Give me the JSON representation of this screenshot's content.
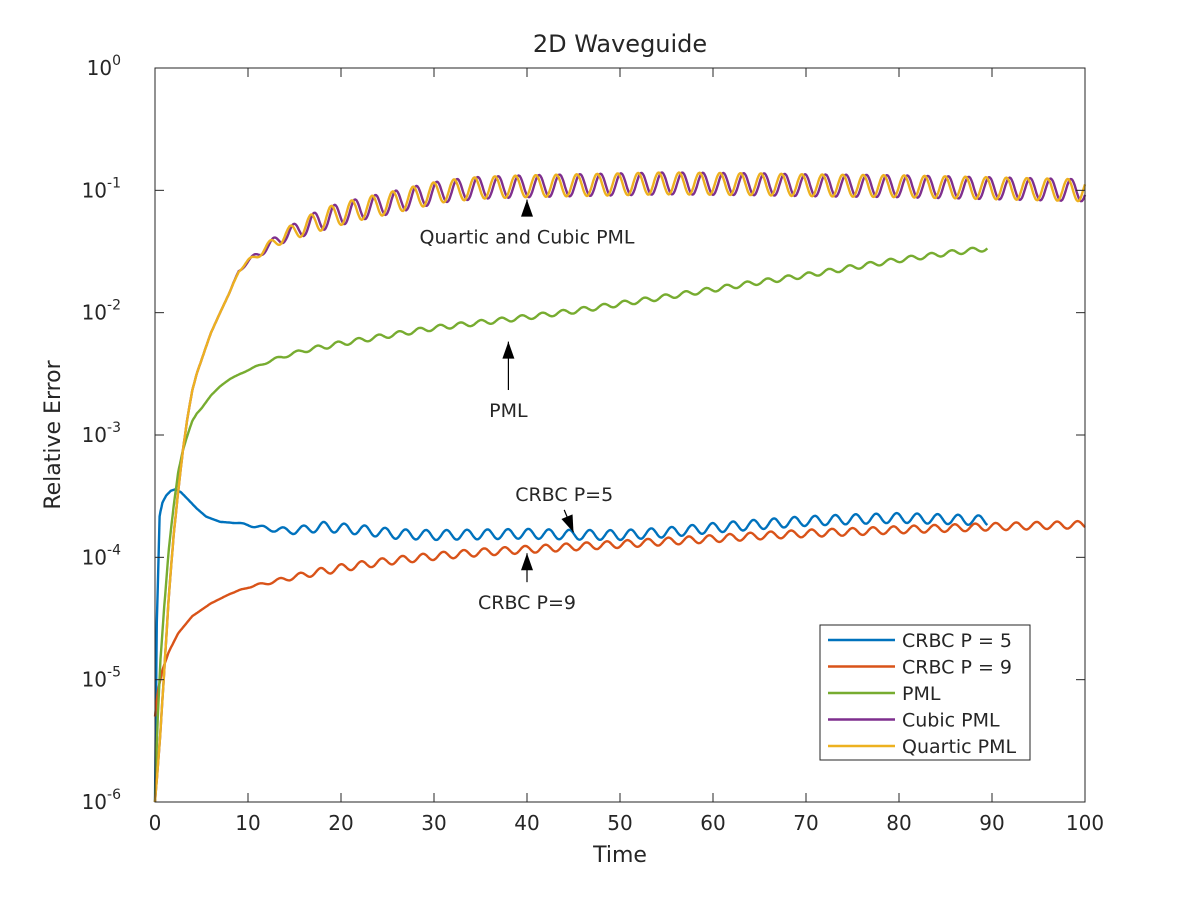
{
  "chart_data": {
    "type": "line",
    "title": "2D Waveguide",
    "xlabel": "Time",
    "ylabel": "Relative Error",
    "xlim": [
      0,
      100
    ],
    "ylim": [
      1e-06,
      1
    ],
    "yscale": "log",
    "grid": false,
    "legend_position": "bottom-right",
    "x_ticks": [
      "0",
      "10",
      "20",
      "30",
      "40",
      "50",
      "60",
      "70",
      "80",
      "90",
      "100"
    ],
    "y_ticks": [
      {
        "base": "10",
        "exp": "-6"
      },
      {
        "base": "10",
        "exp": "-5"
      },
      {
        "base": "10",
        "exp": "-4"
      },
      {
        "base": "10",
        "exp": "-3"
      },
      {
        "base": "10",
        "exp": "-2"
      },
      {
        "base": "10",
        "exp": "-1"
      },
      {
        "base": "10",
        "exp": "0"
      }
    ],
    "series": [
      {
        "name": "CRBC P = 5",
        "color": "#0072BD",
        "ripple": 0.04,
        "x": [
          0,
          0.2,
          0.5,
          0.8,
          1.2,
          1.7,
          2.2,
          2.8,
          3.5,
          4.5,
          5.5,
          7,
          9,
          11,
          13,
          15,
          18,
          22,
          26,
          30,
          35,
          40,
          45,
          50,
          55,
          60,
          65,
          70,
          75,
          80,
          85,
          89.5
        ],
        "y": [
          1e-06,
          3e-05,
          0.00022,
          0.00028,
          0.00032,
          0.00035,
          0.00036,
          0.00034,
          0.0003,
          0.00025,
          0.000215,
          0.000195,
          0.00019,
          0.000178,
          0.000168,
          0.000165,
          0.000178,
          0.000168,
          0.000155,
          0.000152,
          0.000154,
          0.000156,
          0.000153,
          0.000152,
          0.00016,
          0.000174,
          0.000186,
          0.000198,
          0.000205,
          0.00021,
          0.000205,
          0.0002
        ]
      },
      {
        "name": "CRBC P = 9",
        "color": "#D95319",
        "ripple": 0.03,
        "x": [
          0,
          0.3,
          0.8,
          1.5,
          2.5,
          4,
          6,
          8,
          10,
          13,
          16,
          20,
          25,
          30,
          35,
          40,
          45,
          50,
          55,
          60,
          65,
          70,
          75,
          80,
          85,
          90,
          95,
          100
        ],
        "y": [
          5e-06,
          8e-06,
          1.2e-05,
          1.7e-05,
          2.4e-05,
          3.3e-05,
          4.2e-05,
          5e-05,
          5.7e-05,
          6.4e-05,
          7.2e-05,
          8.2e-05,
          9.3e-05,
          0.000102,
          0.00011,
          0.000116,
          0.000122,
          0.000128,
          0.000135,
          0.000142,
          0.00015,
          0.000157,
          0.000162,
          0.000168,
          0.000173,
          0.000178,
          0.000182,
          0.000185
        ]
      },
      {
        "name": "PML",
        "color": "#77AC30",
        "ripple": 0.02,
        "x": [
          0,
          0.3,
          0.6,
          1,
          1.5,
          2,
          2.5,
          3,
          3.5,
          4,
          4.5,
          5,
          6,
          7,
          8,
          10,
          13,
          16,
          20,
          25,
          30,
          35,
          40,
          45,
          50,
          55,
          60,
          65,
          70,
          75,
          80,
          85,
          89.5
        ],
        "y": [
          1e-06,
          5e-06,
          1.5e-05,
          4e-05,
          0.00012,
          0.00026,
          0.0005,
          0.00075,
          0.001,
          0.0013,
          0.0015,
          0.00165,
          0.0021,
          0.0025,
          0.00285,
          0.0034,
          0.0042,
          0.0049,
          0.0056,
          0.0065,
          0.0075,
          0.0083,
          0.0092,
          0.0103,
          0.0118,
          0.0135,
          0.0155,
          0.0178,
          0.0202,
          0.0235,
          0.027,
          0.0305,
          0.0335
        ]
      },
      {
        "name": "Cubic PML",
        "color": "#7E2F8E",
        "ripple": 0.09,
        "x": [
          0,
          0.5,
          1,
          1.5,
          2,
          2.5,
          3,
          3.5,
          4,
          4.5,
          5,
          5.5,
          6,
          7,
          8,
          9,
          10,
          12,
          14,
          16,
          18,
          20,
          22,
          25,
          28,
          31,
          35,
          40,
          45,
          50,
          55,
          60,
          65,
          70,
          75,
          80,
          85,
          90,
          95,
          100
        ],
        "y": [
          1e-06,
          3e-06,
          1.2e-05,
          5e-05,
          0.00015,
          0.00035,
          0.00075,
          0.0014,
          0.0023,
          0.0032,
          0.0041,
          0.0053,
          0.0068,
          0.01,
          0.0145,
          0.022,
          0.026,
          0.034,
          0.043,
          0.05,
          0.058,
          0.064,
          0.07,
          0.078,
          0.088,
          0.098,
          0.105,
          0.108,
          0.11,
          0.112,
          0.114,
          0.113,
          0.112,
          0.11,
          0.109,
          0.108,
          0.106,
          0.104,
          0.102,
          0.1
        ]
      },
      {
        "name": "Quartic PML",
        "color": "#EDB120",
        "ripple": 0.09,
        "x": [
          0,
          0.5,
          1,
          1.5,
          2,
          2.5,
          3,
          3.5,
          4,
          4.5,
          5,
          5.5,
          6,
          7,
          8,
          9,
          10,
          12,
          14,
          16,
          18,
          20,
          22,
          25,
          28,
          31,
          35,
          40,
          45,
          50,
          55,
          60,
          65,
          70,
          75,
          80,
          85,
          90,
          95,
          100
        ],
        "y": [
          1e-06,
          3e-06,
          1.2e-05,
          5e-05,
          0.00015,
          0.00035,
          0.00075,
          0.0014,
          0.0023,
          0.0032,
          0.0041,
          0.0053,
          0.0068,
          0.01,
          0.0145,
          0.022,
          0.026,
          0.034,
          0.043,
          0.05,
          0.058,
          0.064,
          0.07,
          0.078,
          0.088,
          0.098,
          0.105,
          0.108,
          0.11,
          0.112,
          0.114,
          0.113,
          0.112,
          0.11,
          0.109,
          0.108,
          0.106,
          0.104,
          0.102,
          0.1
        ]
      }
    ],
    "annotations": [
      {
        "text": "Quartic and Cubic PML",
        "text_x": 40,
        "text_y": 0.042,
        "arrow_to_x": 40,
        "arrow_to_y": 0.084
      },
      {
        "text": "PML",
        "text_x": 38,
        "text_y": 0.0016,
        "arrow_to_x": 38,
        "arrow_to_y": 0.0058
      },
      {
        "text": "CRBC P=5",
        "text_x": 44,
        "text_y": 0.00033,
        "arrow_to_x": 45,
        "arrow_to_y": 0.00016
      },
      {
        "text": "CRBC P=9",
        "text_x": 40,
        "text_y": 4.3e-05,
        "arrow_to_x": 40,
        "arrow_to_y": 0.000108
      }
    ]
  }
}
